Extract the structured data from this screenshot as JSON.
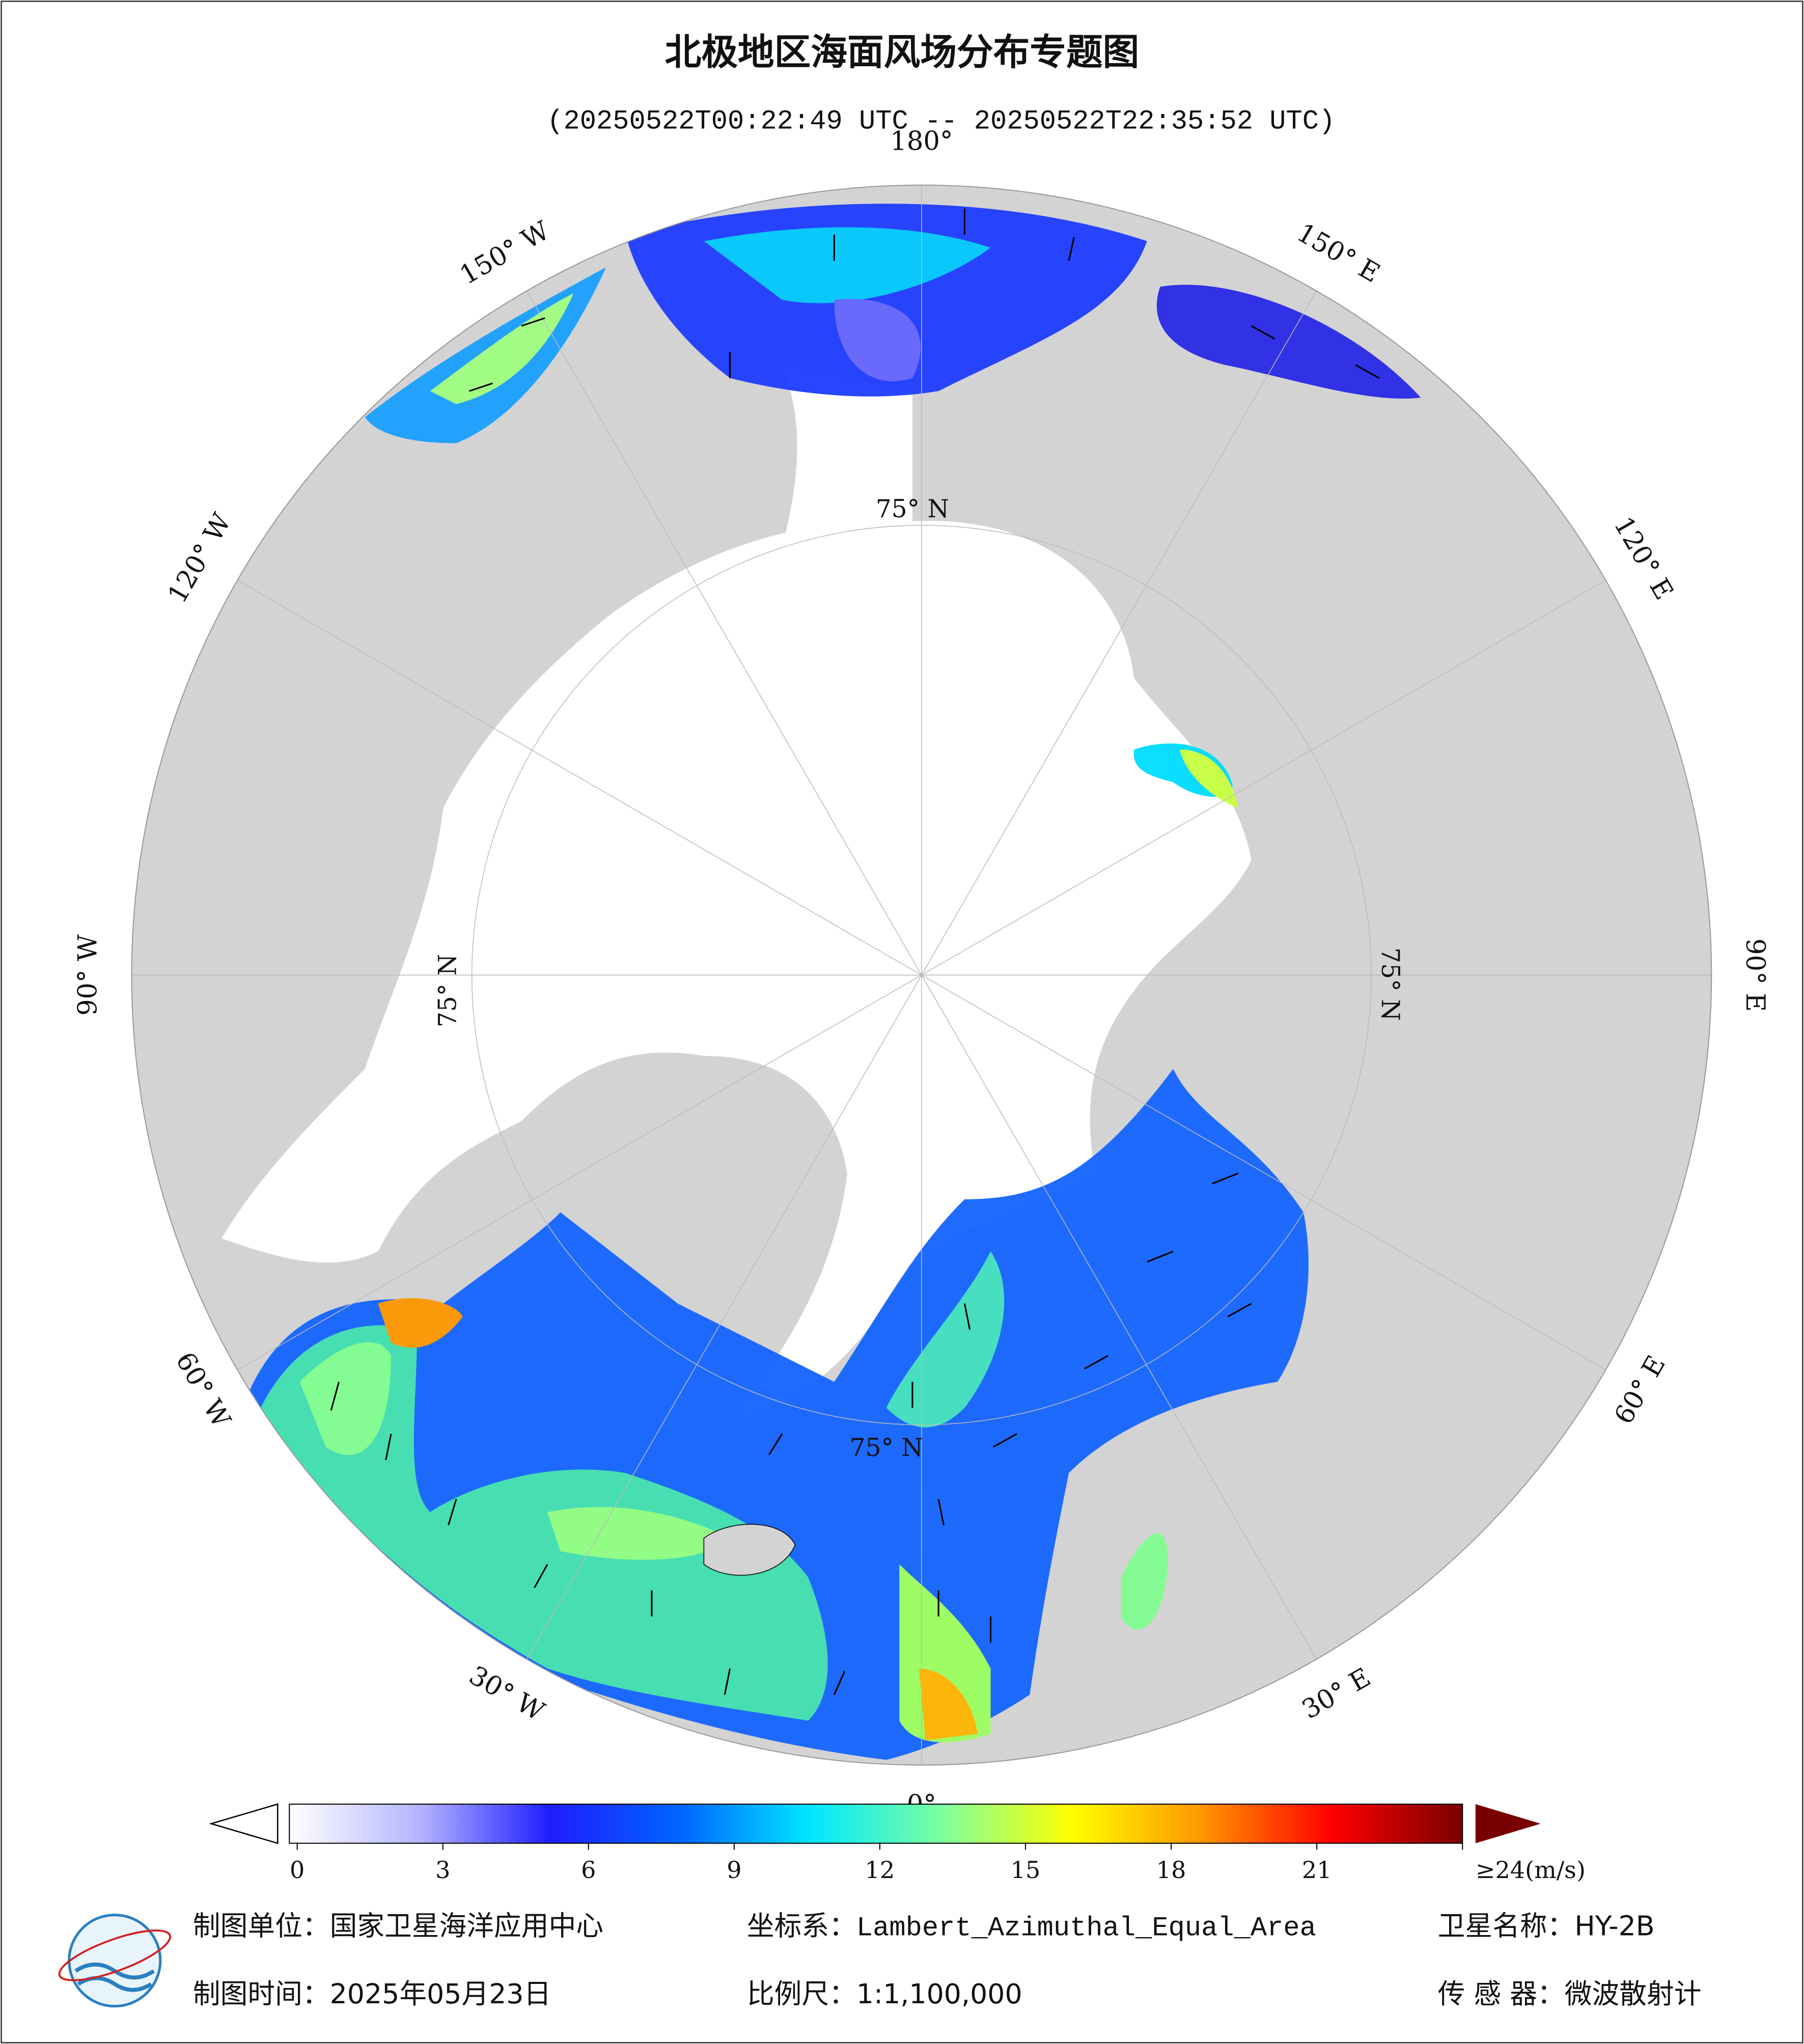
{
  "title": "北极地区海面风场分布专题图",
  "subtitle": "(20250522T00:22:49 UTC -- 20250522T22:35:52 UTC)",
  "longitude_labels": [
    "180°",
    "150° E",
    "120° E",
    "90° E",
    "60° E",
    "30° E",
    "0°",
    "30° W",
    "60° W",
    "90° W",
    "120° W",
    "150° W"
  ],
  "latitude_labels": [
    "75° N",
    "75° N",
    "75° N",
    "75° N"
  ],
  "colorbar": {
    "ticks": [
      0,
      3,
      6,
      9,
      12,
      15,
      18,
      21,
      {
        "value": 24,
        "label": "≥24(m/s)"
      }
    ],
    "colors": [
      "#ffffff",
      "#b4b4ff",
      "#1e1eff",
      "#0064ff",
      "#00e6ff",
      "#7dffa0",
      "#ffff00",
      "#ff9600",
      "#ff0000",
      "#780000"
    ]
  },
  "footer": {
    "unit": "制图单位：国家卫星海洋应用中心",
    "crs": "坐标系：Lambert_Azimuthal_Equal_Area",
    "satellite": "卫星名称：HY-2B",
    "date": "制图时间：2025年05月23日",
    "scale": "比例尺：1:1,100,000",
    "sensor": "传 感 器：微波散射计"
  }
}
